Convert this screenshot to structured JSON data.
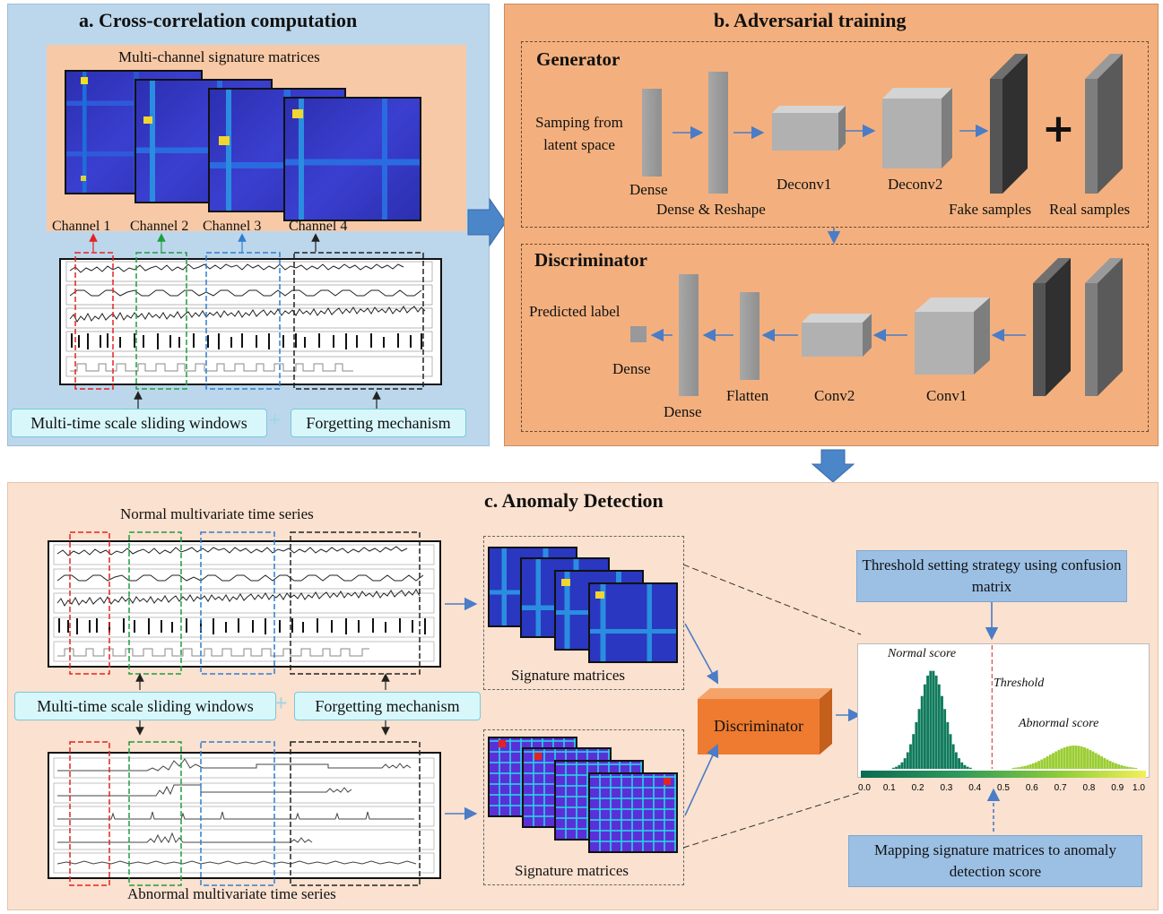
{
  "panel_a": {
    "title": "a. Cross-correlation computation",
    "matrices_caption": "Multi-channel signature matrices",
    "channels": [
      "Channel 1",
      "Channel 2",
      "Channel 3",
      "Channel 4"
    ],
    "channel_colors": [
      "#e52222",
      "#1e9e3e",
      "#2f7fd0",
      "#222222"
    ],
    "sliding_windows_label": "Multi-time scale sliding windows",
    "forgetting_label": "Forgetting mechanism"
  },
  "panel_b": {
    "title": "b. Adversarial training",
    "generator": {
      "heading": "Generator",
      "input_label": "Samping from latent space",
      "layers": [
        "Dense",
        "Dense & Reshape",
        "Deconv1",
        "Deconv2"
      ],
      "fake_label": "Fake samples",
      "real_label": "Real samples",
      "plus": "+"
    },
    "discriminator": {
      "heading": "Discriminator",
      "output_label": "Predicted label",
      "layers": [
        "Dense",
        "Dense",
        "Flatten",
        "Conv2",
        "Conv1"
      ]
    }
  },
  "panel_c": {
    "title": "c. Anomaly Detection",
    "normal_series_label": "Normal multivariate time series",
    "abnormal_series_label": "Abnormal multivariate time series",
    "sliding_windows_label": "Multi-time scale sliding windows",
    "forgetting_label": "Forgetting mechanism",
    "signature_label_top": "Signature matrices",
    "signature_label_bottom": "Signature matrices",
    "discriminator_label": "Discriminator",
    "threshold_box": "Threshold setting strategy using confusion matrix",
    "mapping_box": "Mapping signature matrices to anomaly detection score",
    "normal_score": "Normal score",
    "threshold": "Threshold",
    "abnormal_score": "Abnormal score",
    "axis_ticks": [
      "0.0",
      "0.1",
      "0.2",
      "0.3",
      "0.4",
      "0.5",
      "0.6",
      "0.7",
      "0.8",
      "0.9",
      "1.0"
    ]
  },
  "colors": {
    "panel_a_bg": "#bcd7ec",
    "panel_b_bg": "#f3b07e",
    "panel_c_bg": "#fbe1cf",
    "arrow_blue": "#4a7cc7",
    "discriminator_orange": "#ee7b2f",
    "normal_hist": "#0f7a5c",
    "abnormal_hist": "#9acd32"
  }
}
